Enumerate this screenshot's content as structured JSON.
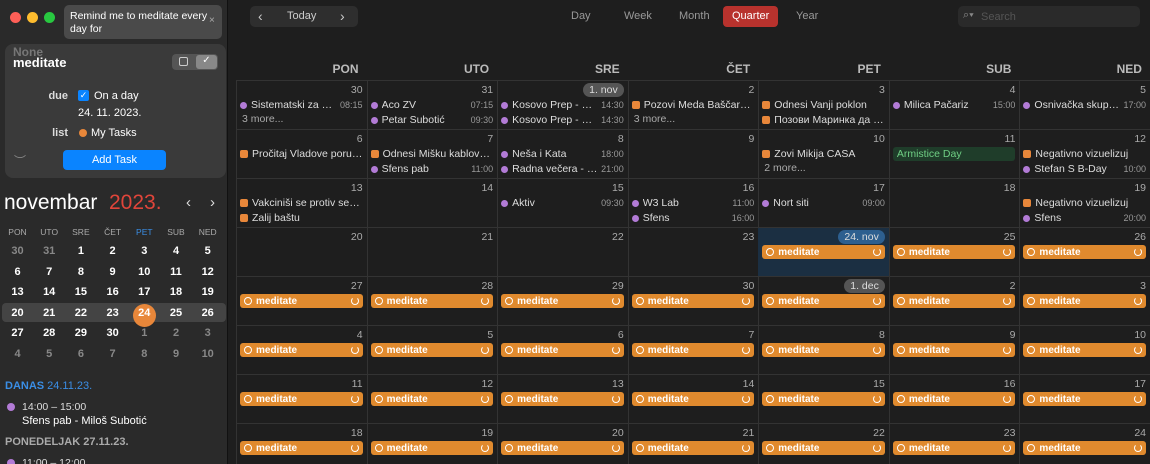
{
  "input": {
    "text": "Remind me to meditate every day for"
  },
  "popup": {
    "ghost": "None",
    "title": "meditate",
    "due_label": "due",
    "due_option": "On a day",
    "due_date": "24. 11. 2023.",
    "list_label": "list",
    "list": "My Tasks",
    "button": "Add Task"
  },
  "mini": {
    "month": "novembar",
    "year": "2023.",
    "weekdays": [
      "PON",
      "UTO",
      "SRE",
      "ČET",
      "PET",
      "SUB",
      "NED"
    ],
    "highlight_day": "PET",
    "weeks": [
      [
        30,
        31,
        1,
        2,
        3,
        4,
        5
      ],
      [
        6,
        7,
        8,
        9,
        10,
        11,
        12
      ],
      [
        13,
        14,
        15,
        16,
        17,
        18,
        19
      ],
      [
        20,
        21,
        22,
        23,
        {
          "value": 24,
          "today": true
        },
        25,
        26
      ],
      [
        27,
        28,
        29,
        30,
        1,
        2,
        3
      ],
      [
        4,
        5,
        6,
        7,
        8,
        9,
        10
      ]
    ]
  },
  "agenda": [
    {
      "heading": "DANAS",
      "date": "24.11.23.",
      "items": [
        {
          "time": "14:00 – 15:00",
          "title": "Sfens pab - Miloš Subotić"
        }
      ]
    },
    {
      "heading": "PONEDELJAK 27.11.23.",
      "items": [
        {
          "time": "11:00 – 12:00"
        }
      ]
    }
  ],
  "toolbar": {
    "today": "Today",
    "views": [
      "Day",
      "Week",
      "Month",
      "Quarter",
      "Year"
    ],
    "selected": "Quarter",
    "search": "Search"
  },
  "calendar": {
    "weekdays": [
      "PON",
      "UTO",
      "SRE",
      "ČET",
      "PET",
      "SUB",
      "NED"
    ],
    "weeks": [
      [
        {
          "date": "30",
          "events": [
            {
              "title": "Sistematski za M…",
              "time": "08:15",
              "icon": "dot"
            }
          ],
          "more": "3 more..."
        },
        {
          "date": "31",
          "events": [
            {
              "title": "Aco ZV",
              "time": "07:15",
              "icon": "dot"
            },
            {
              "title": "Petar Subotić",
              "time": "09:30",
              "icon": "dot"
            }
          ]
        },
        {
          "date": "1. nov",
          "events": [
            {
              "title": "Kosovo Prep - Wa…",
              "time": "14:30",
              "icon": "dot"
            },
            {
              "title": "Kosovo Prep - Wa…",
              "time": "14:30",
              "icon": "dot"
            }
          ]
        },
        {
          "date": "2",
          "events": [
            {
              "title": "Pozovi Meda Baščarev…",
              "icon": "check"
            }
          ],
          "more": "3 more..."
        },
        {
          "date": "3",
          "events": [
            {
              "title": "Odnesi Vanji poklon",
              "icon": "check"
            },
            {
              "title": "Позови Маринка да с…",
              "icon": "check"
            }
          ]
        },
        {
          "date": "4",
          "events": [
            {
              "title": "Milica Pačariz",
              "time": "15:00",
              "icon": "dot"
            }
          ]
        },
        {
          "date": "5",
          "events": [
            {
              "title": "Osnivačka skupšt…",
              "time": "17:00",
              "icon": "dot"
            }
          ]
        }
      ],
      [
        {
          "date": "6",
          "events": [
            {
              "title": "Pročitaj Vladove poruk…",
              "icon": "check"
            }
          ]
        },
        {
          "date": "7",
          "events": [
            {
              "title": "Odnesi Mišku kablove…",
              "icon": "check"
            },
            {
              "title": "Sfens pab",
              "time": "11:00",
              "icon": "dot"
            }
          ]
        },
        {
          "date": "8",
          "events": [
            {
              "title": "Neša i Kata",
              "time": "18:00",
              "icon": "dot"
            },
            {
              "title": "Radna večera - Pr…",
              "time": "21:00",
              "icon": "dot"
            }
          ]
        },
        {
          "date": "9",
          "events": []
        },
        {
          "date": "10",
          "events": [
            {
              "title": "Zovi Mikija CASA",
              "icon": "check"
            }
          ],
          "more": "2 more..."
        },
        {
          "date": "11",
          "events": [
            {
              "title": "Armistice Day",
              "icon": "holiday"
            }
          ]
        },
        {
          "date": "12",
          "events": [
            {
              "title": "Negativno vizuelizuj",
              "icon": "check"
            },
            {
              "title": "Stefan S B-Day",
              "time": "10:00",
              "icon": "dot"
            }
          ]
        }
      ],
      [
        {
          "date": "13",
          "events": [
            {
              "title": "Vakciniši se protiv sez…",
              "icon": "check"
            },
            {
              "title": "Zalij baštu",
              "icon": "check"
            }
          ]
        },
        {
          "date": "14",
          "events": []
        },
        {
          "date": "15",
          "events": [
            {
              "title": "Aktiv",
              "time": "09:30",
              "icon": "dot"
            }
          ]
        },
        {
          "date": "16",
          "events": [
            {
              "title": "W3 Lab",
              "time": "11:00",
              "icon": "dot"
            },
            {
              "title": "Sfens",
              "time": "16:00",
              "icon": "dot"
            }
          ]
        },
        {
          "date": "17",
          "events": [
            {
              "title": "Nort siti",
              "time": "09:00",
              "icon": "dot"
            }
          ]
        },
        {
          "date": "18",
          "events": []
        },
        {
          "date": "19",
          "events": [
            {
              "title": "Negativno vizuelizuj",
              "icon": "check"
            },
            {
              "title": "Sfens",
              "time": "20:00",
              "icon": "dot"
            }
          ]
        }
      ],
      [
        {
          "date": "20",
          "events": []
        },
        {
          "date": "21",
          "events": []
        },
        {
          "date": "22",
          "events": []
        },
        {
          "date": "23",
          "events": []
        },
        {
          "date": "24. nov",
          "today": true,
          "events": [
            {
              "title": "meditate",
              "icon": "ring"
            }
          ]
        },
        {
          "date": "25",
          "events": [
            {
              "title": "meditate",
              "icon": "ring"
            }
          ]
        },
        {
          "date": "26",
          "events": [
            {
              "title": "meditate",
              "icon": "ring"
            }
          ]
        }
      ],
      [
        {
          "date": "27",
          "events": [
            {
              "title": "meditate",
              "icon": "ring"
            }
          ]
        },
        {
          "date": "28",
          "events": [
            {
              "title": "meditate",
              "icon": "ring"
            }
          ]
        },
        {
          "date": "29",
          "events": [
            {
              "title": "meditate",
              "icon": "ring"
            }
          ]
        },
        {
          "date": "30",
          "events": [
            {
              "title": "meditate",
              "icon": "ring"
            }
          ]
        },
        {
          "date": "1. dec",
          "events": [
            {
              "title": "meditate",
              "icon": "ring"
            }
          ]
        },
        {
          "date": "2",
          "events": [
            {
              "title": "meditate",
              "icon": "ring"
            }
          ]
        },
        {
          "date": "3",
          "events": [
            {
              "title": "meditate",
              "icon": "ring"
            }
          ]
        }
      ],
      [
        {
          "date": "4",
          "events": [
            {
              "title": "meditate",
              "icon": "ring"
            }
          ]
        },
        {
          "date": "5",
          "events": [
            {
              "title": "meditate",
              "icon": "ring"
            }
          ]
        },
        {
          "date": "6",
          "events": [
            {
              "title": "meditate",
              "icon": "ring"
            }
          ]
        },
        {
          "date": "7",
          "events": [
            {
              "title": "meditate",
              "icon": "ring"
            }
          ]
        },
        {
          "date": "8",
          "events": [
            {
              "title": "meditate",
              "icon": "ring"
            }
          ]
        },
        {
          "date": "9",
          "events": [
            {
              "title": "meditate",
              "icon": "ring"
            }
          ]
        },
        {
          "date": "10",
          "events": [
            {
              "title": "meditate",
              "icon": "ring"
            }
          ]
        }
      ],
      [
        {
          "date": "11",
          "events": [
            {
              "title": "meditate",
              "icon": "ring"
            }
          ]
        },
        {
          "date": "12",
          "events": [
            {
              "title": "meditate",
              "icon": "ring"
            }
          ]
        },
        {
          "date": "13",
          "events": [
            {
              "title": "meditate",
              "icon": "ring"
            }
          ]
        },
        {
          "date": "14",
          "events": [
            {
              "title": "meditate",
              "icon": "ring"
            }
          ]
        },
        {
          "date": "15",
          "events": [
            {
              "title": "meditate",
              "icon": "ring"
            }
          ]
        },
        {
          "date": "16",
          "events": [
            {
              "title": "meditate",
              "icon": "ring"
            }
          ]
        },
        {
          "date": "17",
          "events": [
            {
              "title": "meditate",
              "icon": "ring"
            }
          ]
        }
      ],
      [
        {
          "date": "18",
          "events": [
            {
              "title": "meditate",
              "icon": "ring"
            }
          ]
        },
        {
          "date": "19",
          "events": [
            {
              "title": "meditate",
              "icon": "ring"
            }
          ]
        },
        {
          "date": "20",
          "events": [
            {
              "title": "meditate",
              "icon": "ring"
            }
          ]
        },
        {
          "date": "21",
          "events": [
            {
              "title": "meditate",
              "icon": "ring"
            }
          ]
        },
        {
          "date": "22",
          "events": [
            {
              "title": "meditate",
              "icon": "ring"
            }
          ]
        },
        {
          "date": "23",
          "events": [
            {
              "title": "meditate",
              "icon": "ring"
            }
          ]
        },
        {
          "date": "24",
          "events": [
            {
              "title": "meditate",
              "icon": "ring"
            }
          ]
        }
      ]
    ]
  }
}
